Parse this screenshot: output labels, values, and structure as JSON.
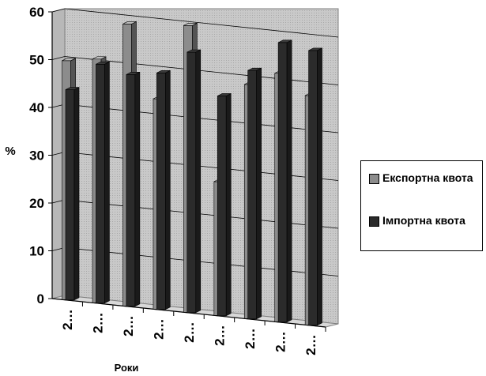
{
  "chart_data": {
    "type": "bar",
    "title": "",
    "xlabel": "Роки",
    "ylabel": "%",
    "ylim": [
      0,
      60
    ],
    "yticks": [
      "0",
      "10",
      "20",
      "30",
      "40",
      "50",
      "60"
    ],
    "categories": [
      "2…",
      "2…",
      "2…",
      "2…",
      "2…",
      "2…",
      "2…",
      "2…",
      "2…"
    ],
    "series": [
      {
        "name": "Експортна квота",
        "color": "#8c8c8c",
        "values": [
          50,
          51,
          59,
          44,
          60,
          28,
          49,
          52,
          48
        ]
      },
      {
        "name": "Імпортна квота",
        "color": "#2b2b2b",
        "values": [
          44,
          50,
          48.5,
          49.5,
          54.5,
          46,
          52,
          58.5,
          57.5
        ]
      }
    ],
    "grid": true,
    "legend_position": "right",
    "style": "3d-clustered-column",
    "background": "#c9c9c9"
  }
}
